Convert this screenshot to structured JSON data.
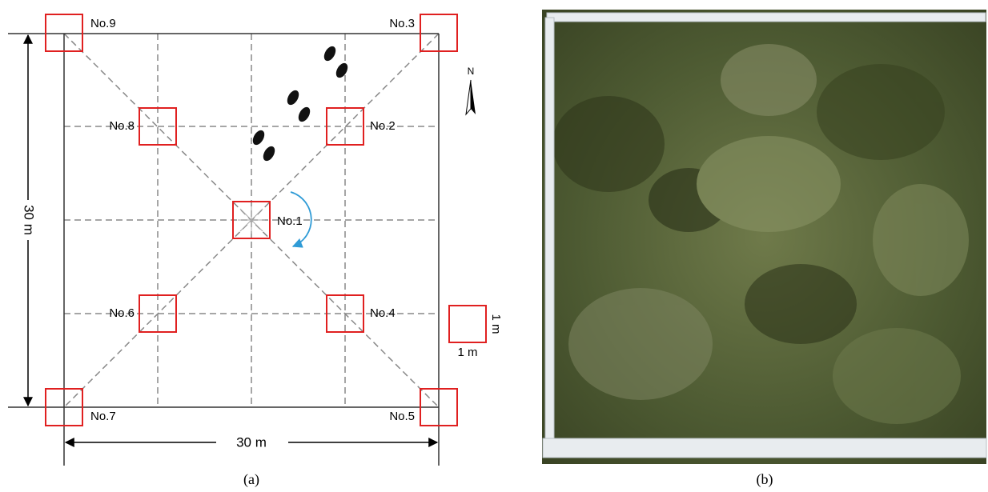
{
  "panel_a": {
    "plots": [
      {
        "label": "No.1"
      },
      {
        "label": "No.2"
      },
      {
        "label": "No.3"
      },
      {
        "label": "No.4"
      },
      {
        "label": "No.5"
      },
      {
        "label": "No.6"
      },
      {
        "label": "No.7"
      },
      {
        "label": "No.8"
      },
      {
        "label": "No.9"
      }
    ],
    "height_label": "30 m",
    "width_label": "30 m",
    "legend_height": "1 m",
    "legend_width": "1 m",
    "north": "N",
    "caption": "(a)"
  },
  "panel_b": {
    "caption": "(b)"
  }
}
